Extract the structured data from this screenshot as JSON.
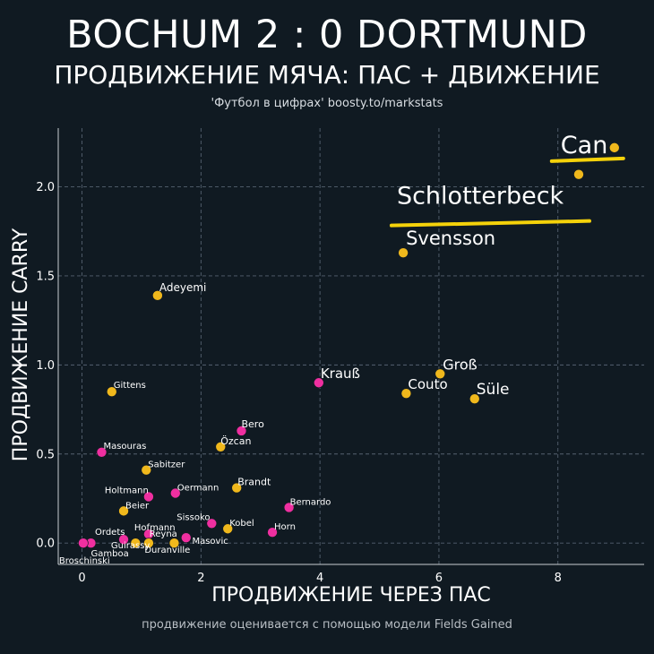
{
  "header": {
    "title": "BOCHUM 2 : 0 DORTMUND",
    "subtitle": "ПРОДВИЖЕНИЕ МЯЧА: ПАС + ДВИЖЕНИЕ",
    "source": "'Футбол в цифрах' boosty.to/markstats"
  },
  "footnote": "продвижение оценивается с помощью модели Fields Gained",
  "colors": {
    "bochum": "#f0b81c",
    "dortmund": "#ef2fa0",
    "background": "#101a22",
    "grid": "#556270",
    "highlight": "#f5d20a"
  },
  "chart_data": {
    "type": "scatter",
    "xlabel": "ПРОДВИЖЕНИЕ ЧЕРЕЗ ПАС",
    "ylabel": "ПРОДВИЖЕНИЕ CARRY",
    "xlim": [
      -0.4,
      9.45
    ],
    "ylim": [
      -0.12,
      2.33
    ],
    "x_ticks": [
      0,
      2,
      4,
      6,
      8
    ],
    "y_ticks": [
      0.0,
      0.5,
      1.0,
      1.5,
      2.0
    ],
    "grid": true,
    "highlighted": [
      "Can",
      "Schlotterbeck"
    ],
    "points": [
      {
        "name": "Can",
        "x": 8.95,
        "y": 2.22,
        "team": "bochum"
      },
      {
        "name": "Schlotterbeck",
        "x": 8.35,
        "y": 2.07,
        "team": "bochum"
      },
      {
        "name": "Svensson",
        "x": 5.4,
        "y": 1.63,
        "team": "bochum"
      },
      {
        "name": "Adeyemi",
        "x": 1.27,
        "y": 1.39,
        "team": "bochum"
      },
      {
        "name": "Gittens",
        "x": 0.5,
        "y": 0.85,
        "team": "bochum"
      },
      {
        "name": "Krauß",
        "x": 3.98,
        "y": 0.9,
        "team": "dortmund"
      },
      {
        "name": "Groß",
        "x": 6.02,
        "y": 0.95,
        "team": "bochum"
      },
      {
        "name": "Couto",
        "x": 5.45,
        "y": 0.84,
        "team": "bochum"
      },
      {
        "name": "Süle",
        "x": 6.6,
        "y": 0.81,
        "team": "bochum"
      },
      {
        "name": "Bero",
        "x": 2.68,
        "y": 0.63,
        "team": "dortmund"
      },
      {
        "name": "Özcan",
        "x": 2.33,
        "y": 0.54,
        "team": "bochum"
      },
      {
        "name": "Masouras",
        "x": 0.33,
        "y": 0.51,
        "team": "dortmund"
      },
      {
        "name": "Sabitzer",
        "x": 1.08,
        "y": 0.41,
        "team": "bochum"
      },
      {
        "name": "Brandt",
        "x": 2.6,
        "y": 0.31,
        "team": "bochum"
      },
      {
        "name": "Oermann",
        "x": 1.57,
        "y": 0.28,
        "team": "dortmund"
      },
      {
        "name": "Holtmann",
        "x": 1.12,
        "y": 0.26,
        "team": "dortmund"
      },
      {
        "name": "Bernardo",
        "x": 3.48,
        "y": 0.2,
        "team": "dortmund"
      },
      {
        "name": "Beier",
        "x": 0.7,
        "y": 0.18,
        "team": "bochum"
      },
      {
        "name": "Sissoko",
        "x": 2.18,
        "y": 0.11,
        "team": "dortmund"
      },
      {
        "name": "Kobel",
        "x": 2.45,
        "y": 0.08,
        "team": "bochum"
      },
      {
        "name": "Horn",
        "x": 3.2,
        "y": 0.06,
        "team": "dortmund"
      },
      {
        "name": "Hofmann",
        "x": 1.12,
        "y": 0.05,
        "team": "dortmund"
      },
      {
        "name": "Ordets",
        "x": 0.7,
        "y": 0.02,
        "team": "dortmund"
      },
      {
        "name": "Reyna",
        "x": 1.75,
        "y": 0.03,
        "team": "dortmund"
      },
      {
        "name": "Masovic",
        "x": 1.55,
        "y": 0.0,
        "team": "bochum"
      },
      {
        "name": "Guirassy",
        "x": 1.12,
        "y": 0.0,
        "team": "bochum"
      },
      {
        "name": "Duranville",
        "x": 0.9,
        "y": 0.0,
        "team": "bochum"
      },
      {
        "name": "Gamboa",
        "x": 0.15,
        "y": 0.0,
        "team": "dortmund"
      },
      {
        "name": "Broschinski",
        "x": 0.02,
        "y": 0.0,
        "team": "dortmund"
      }
    ]
  }
}
